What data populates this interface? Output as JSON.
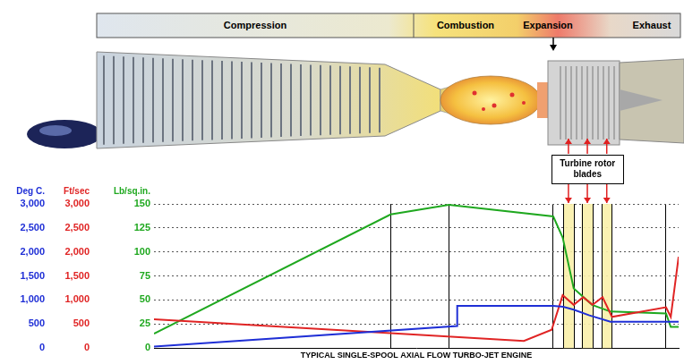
{
  "header": {
    "phases": [
      "Compression",
      "Combustion",
      "Expansion",
      "Exhaust"
    ]
  },
  "chart_data": {
    "type": "line",
    "xlabel": "TYPICAL SINGLE-SPOOL AXIAL FLOW TURBO-JET ENGINE",
    "annotation": {
      "text": "Turbine rotor blades",
      "bands": [
        [
          78,
          80
        ],
        [
          81.5,
          83.7
        ],
        [
          85.4,
          87.2
        ]
      ]
    },
    "xlim": [
      0,
      100
    ],
    "xticks": [
      45.1,
      56.2,
      76.1,
      97.6
    ],
    "ylabel": "Deg C.",
    "ylim": [
      0,
      3000
    ],
    "yticks": [
      0,
      500,
      {
        "value": 1000,
        "label": "1,000"
      },
      {
        "value": 1500,
        "label": "1,500"
      },
      {
        "value": 2000,
        "label": "2,000"
      },
      {
        "value": 2500,
        "label": "2,500"
      },
      {
        "value": 3000,
        "label": "3,000"
      }
    ],
    "y2label": "Ft/sec",
    "y2lim": [
      0,
      3000
    ],
    "y2ticks": [
      0,
      500,
      {
        "value": 1000,
        "label": "1,000"
      },
      {
        "value": 1500,
        "label": "1,500"
      },
      {
        "value": 2000,
        "label": "2,000"
      },
      {
        "value": 2500,
        "label": "2,500"
      },
      {
        "value": 3000,
        "label": "3,000"
      }
    ],
    "y3label": "Lb/sq.in.",
    "y3lim": [
      0,
      150
    ],
    "y3ticks": [
      0,
      25,
      50,
      75,
      100,
      125,
      150
    ],
    "grid": true,
    "tick_labels": "y",
    "series": [
      {
        "color": "#1f2fd6",
        "axis": "y",
        "x": [
          0,
          57.8,
          57.8,
          76.1,
          78,
          80,
          83,
          87,
          97.6,
          100
        ],
        "values": [
          30,
          460,
          880,
          880,
          860,
          800,
          680,
          550,
          550,
          550
        ]
      },
      {
        "color": "#e02424",
        "axis": "y2",
        "x": [
          0,
          70.5,
          75.8,
          77.9,
          80,
          81.8,
          83.6,
          85.5,
          87.3,
          97.6,
          98.5,
          100
        ],
        "values": [
          600,
          150,
          380,
          1100,
          900,
          1060,
          900,
          1060,
          650,
          850,
          650,
          1900
        ]
      },
      {
        "color": "#1fa81f",
        "axis": "y3",
        "x": [
          0,
          45.1,
          56.2,
          76.1,
          77.9,
          80,
          83.5,
          87,
          97.6,
          98.5,
          100
        ],
        "values": [
          15,
          139,
          149,
          137,
          115,
          62,
          45,
          38,
          36,
          22,
          22
        ]
      }
    ]
  }
}
